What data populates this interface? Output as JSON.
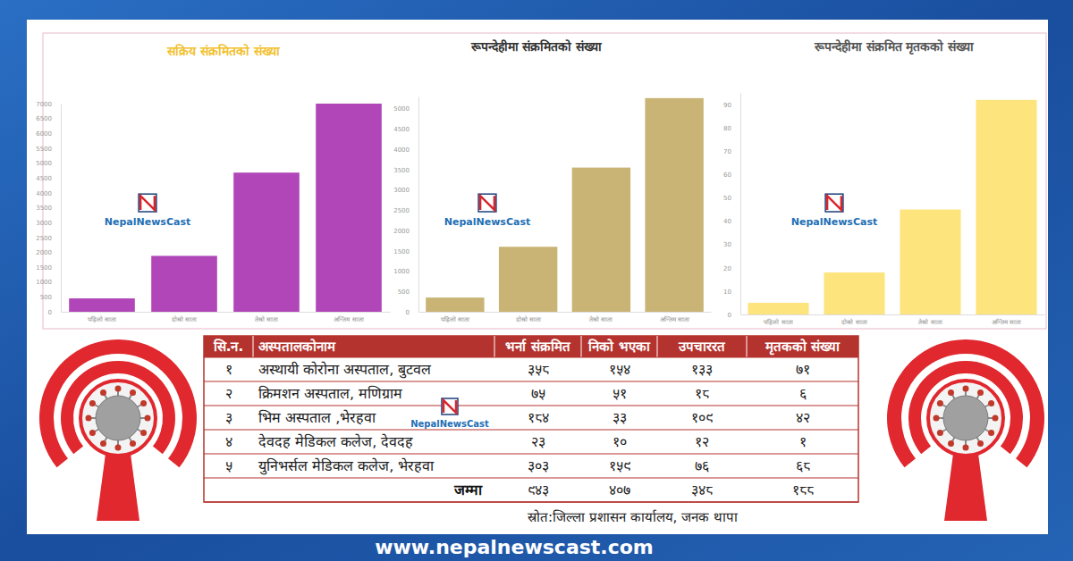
{
  "chart_data": [
    {
      "type": "bar",
      "title": "सक्रिय संक्रमितको संख्या",
      "categories": [
        "पहिलो साता",
        "दोस्रो साता",
        "तेस्रो साता",
        "अन्तिम साता"
      ],
      "values": [
        450,
        1880,
        4680,
        7000
      ],
      "color": "#b046b8",
      "ylim": [
        0,
        7000
      ],
      "yticks": [
        0,
        500,
        1000,
        1500,
        2000,
        2500,
        3000,
        3500,
        4000,
        4500,
        5000,
        5500,
        6000,
        6500,
        7000
      ],
      "grid": false
    },
    {
      "type": "bar",
      "title": "रूपन्देहीमा संक्रमितको संख्या",
      "categories": [
        "पहिलो साता",
        "दोस्रो साता",
        "तेस्रो साता",
        "अन्तिम साता"
      ],
      "values": [
        350,
        1600,
        3550,
        5260
      ],
      "color": "#c9b475",
      "ylim": [
        0,
        5300
      ],
      "yticks": [
        0,
        500,
        1000,
        1500,
        2000,
        2500,
        3000,
        3500,
        4000,
        4500,
        5000
      ],
      "grid": false
    },
    {
      "type": "bar",
      "title": "रूपन्देहीमा संक्रमित मृतकको संख्या",
      "categories": [
        "पहिलो साता",
        "दोस्रो साता",
        "तेस्रो साता",
        "अन्तिम साता"
      ],
      "values": [
        5,
        18,
        45,
        92
      ],
      "color": "#fde47c",
      "ylim": [
        0,
        95
      ],
      "yticks": [
        0,
        10,
        20,
        30,
        40,
        50,
        60,
        70,
        80,
        90
      ],
      "grid": false
    }
  ],
  "table": {
    "header": [
      "सि.न.",
      "अस्पतालकोनाम",
      "भर्ना संक्रमित",
      "निको भएका",
      "उपचाररत",
      "मृतकको संख्या"
    ],
    "rows": [
      [
        "१",
        "अस्थायी कोरोना अस्पताल, बुटवल",
        "३५८",
        "१५४",
        "१३३",
        "७१"
      ],
      [
        "२",
        "क्रिमशन अस्पताल, मणिग्राम",
        "७५",
        "५१",
        "१८",
        "६"
      ],
      [
        "३",
        "भिम अस्पताल ,भेरहवा",
        "१८४",
        "३३",
        "१०९",
        "४२"
      ],
      [
        "४",
        "देवदह मेडिकल कलेज, देवदह",
        "२३",
        "१०",
        "१२",
        "१"
      ],
      [
        "५",
        "युनिभर्सल मेडिकल कलेज, भेरहवा",
        "३०३",
        "१५९",
        "७६",
        "६८"
      ]
    ],
    "total": {
      "label": "जम्मा",
      "values": [
        "९४३",
        "४०७",
        "३४८",
        "१८८"
      ]
    }
  },
  "source": "स्रोत:जिल्ला प्रशासन कार्यालय, जनक थापा",
  "watermark": "NepalNewsCast",
  "footer": "www.nepalnewscast.com"
}
